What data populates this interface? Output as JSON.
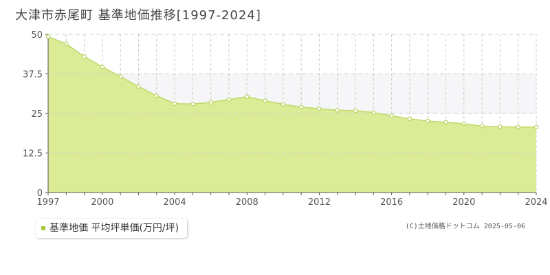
{
  "title": "大津市赤尾町 基準地価推移[1997-2024]",
  "legend_label": "基準地価 平均坪単価(万円/坪)",
  "credit": "(C)土地価格ドットコム 2025-05-06",
  "colors": {
    "fill": "#dcec96",
    "line": "#bcd96a",
    "marker_fill": "#ffffff",
    "marker_stroke": "#b5d35a",
    "grid": "#cccccc",
    "band": "#f6f6f8",
    "legend_marker": "#a8cc3a"
  },
  "chart_data": {
    "type": "area",
    "title": "大津市赤尾町 基準地価推移[1997-2024]",
    "xlabel": "",
    "ylabel": "",
    "x": [
      1997,
      1998,
      1999,
      2000,
      2001,
      2002,
      2003,
      2004,
      2005,
      2006,
      2007,
      2008,
      2009,
      2010,
      2011,
      2012,
      2013,
      2014,
      2015,
      2016,
      2017,
      2018,
      2019,
      2020,
      2021,
      2022,
      2023,
      2024
    ],
    "series": [
      {
        "name": "基準地価 平均坪単価(万円/坪)",
        "values": [
          49.3,
          47.0,
          43.0,
          39.7,
          36.7,
          33.5,
          30.6,
          28.1,
          28.0,
          28.5,
          29.4,
          30.3,
          29.0,
          27.9,
          27.0,
          26.5,
          26.0,
          25.9,
          25.3,
          24.3,
          23.3,
          22.6,
          22.2,
          21.7,
          21.0,
          20.8,
          20.7,
          20.7
        ]
      }
    ],
    "xlim": [
      1997,
      2024
    ],
    "ylim": [
      0,
      50
    ],
    "y_ticks": [
      0,
      12.5,
      25,
      37.5,
      50
    ],
    "y_tick_labels": [
      "0",
      "12.5",
      "25",
      "37.5",
      "50"
    ],
    "x_ticks": [
      1997,
      2000,
      2004,
      2008,
      2012,
      2016,
      2020,
      2024
    ],
    "x_tick_labels": [
      "1997",
      "2000",
      "2004",
      "2008",
      "2012",
      "2016",
      "2020",
      "2024"
    ],
    "grid": true,
    "legend_position": "bottom-left"
  }
}
